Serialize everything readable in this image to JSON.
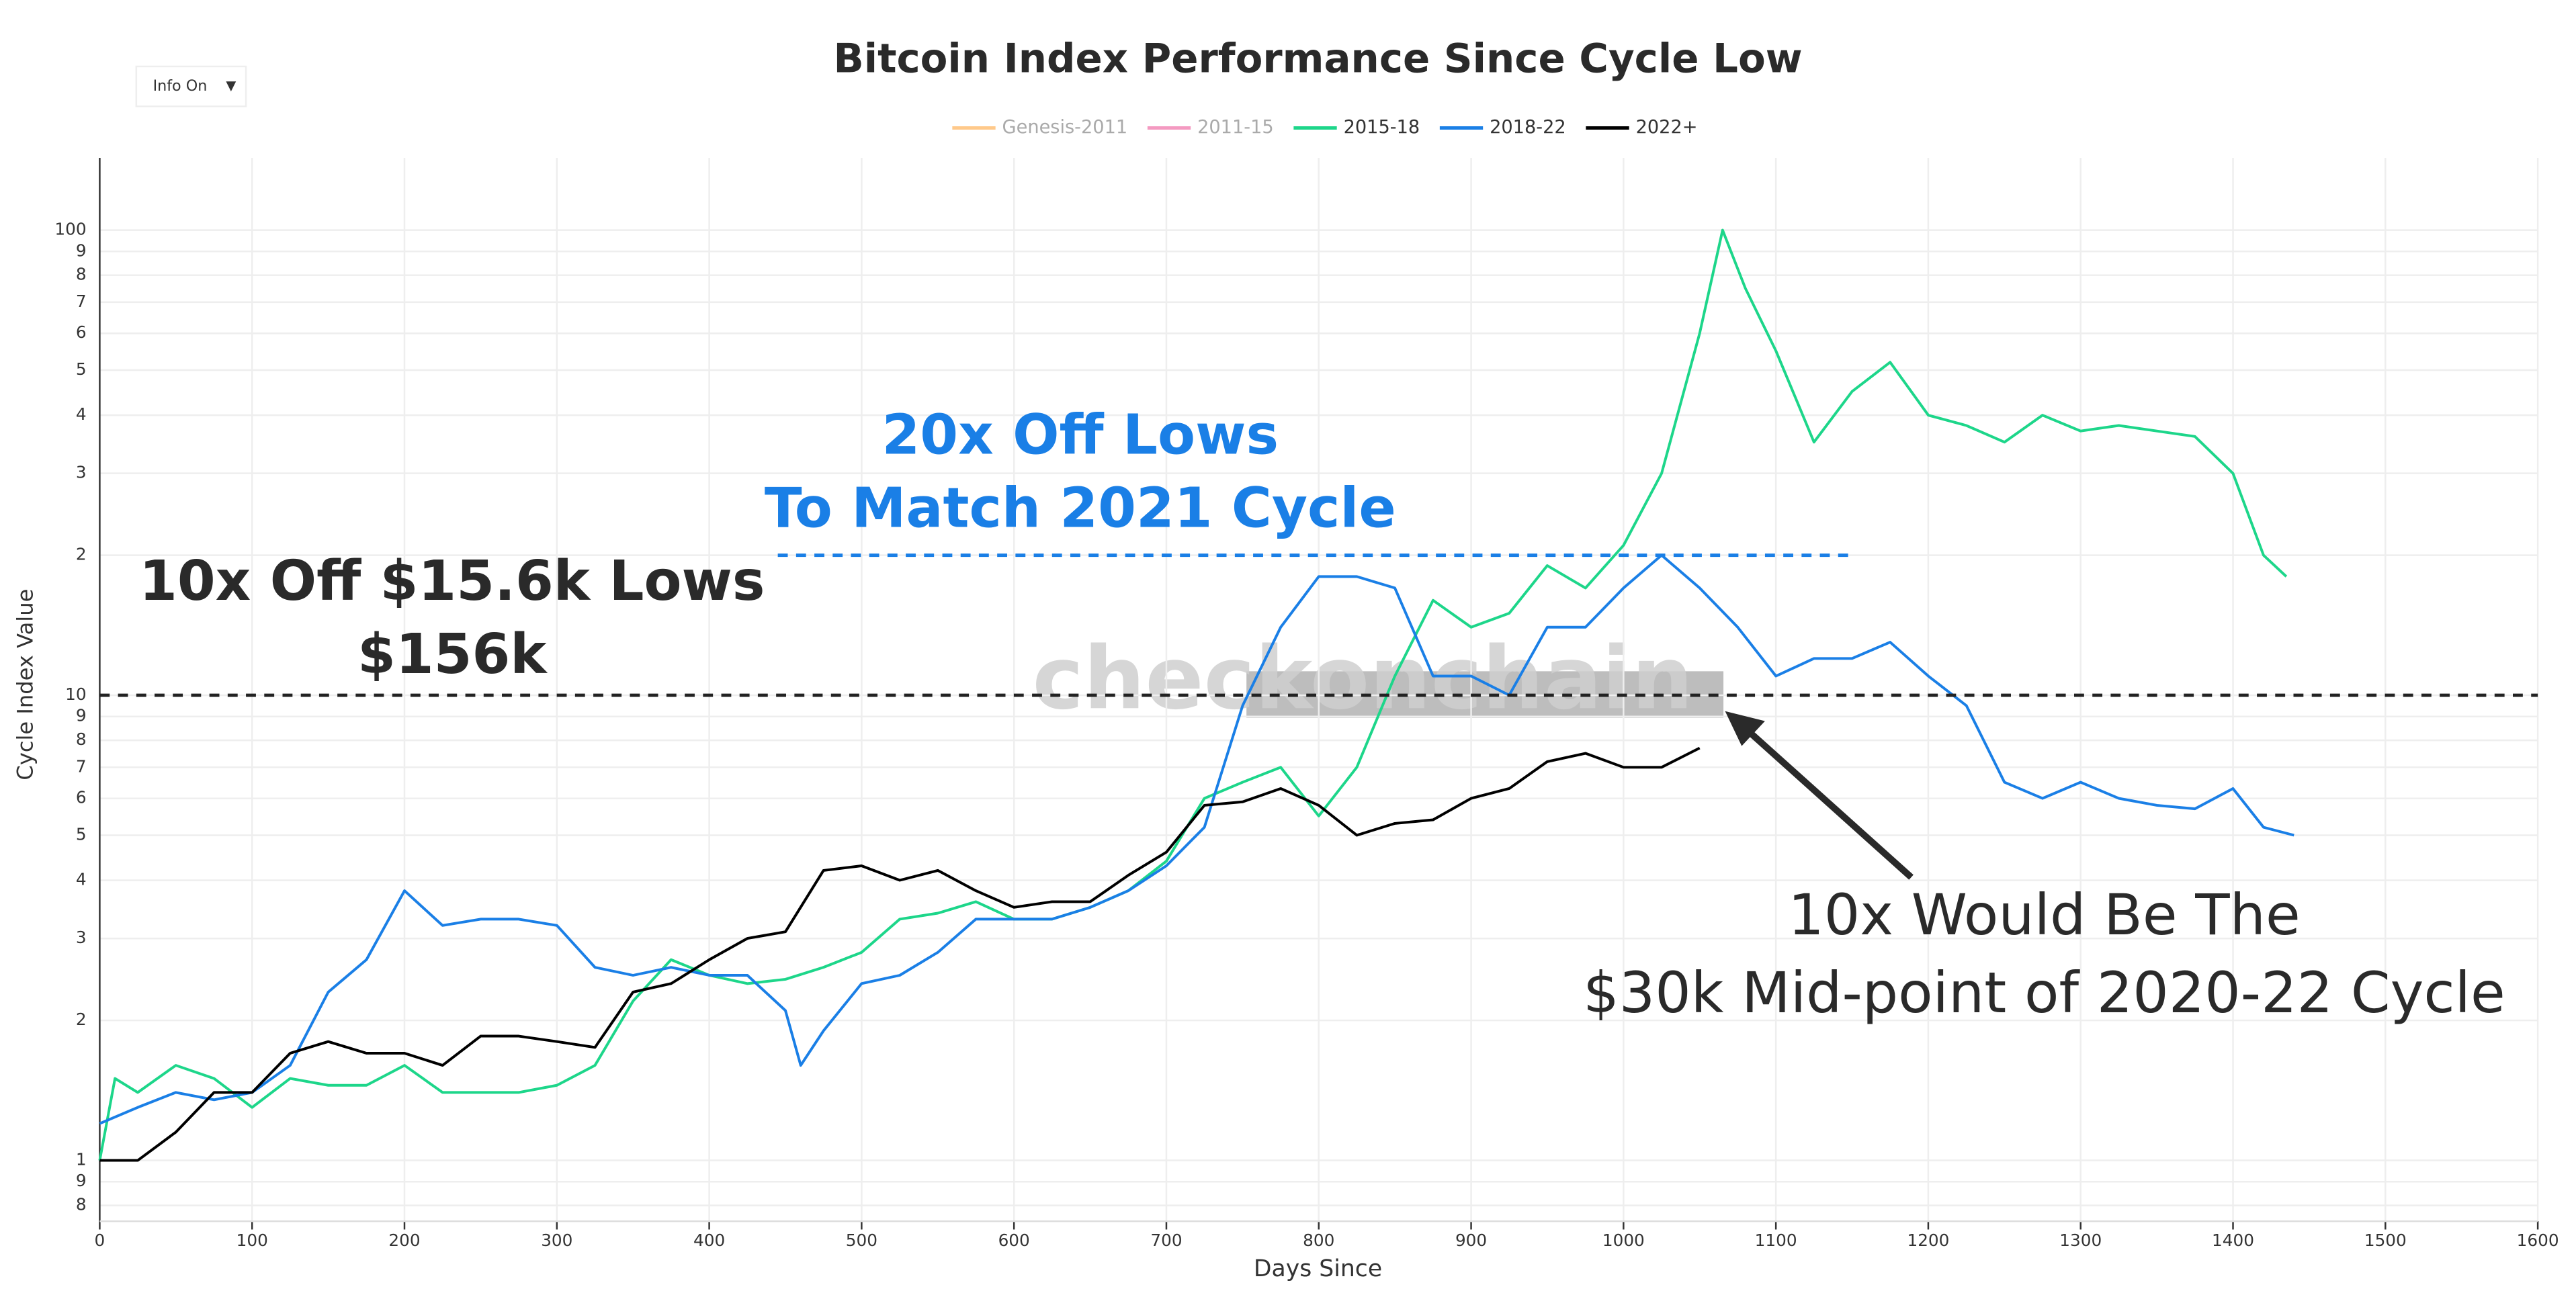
{
  "chart_data": {
    "type": "line",
    "title": "Bitcoin Index Performance Since Cycle Low",
    "dropdown": "Info On",
    "x_label": "Days Since",
    "y_label": "Cycle Index Value",
    "log_y": true,
    "grid": true,
    "watermark": "checkonchain",
    "xlim": [
      0,
      1600
    ],
    "xticks": [
      0,
      100,
      200,
      300,
      400,
      500,
      600,
      700,
      800,
      900,
      1000,
      1100,
      1200,
      1300,
      1400,
      1500,
      1600
    ],
    "ylim": [
      0.74,
      143
    ],
    "yticks": [
      {
        "value": 0.8,
        "label": "8"
      },
      {
        "value": 0.9,
        "label": "9"
      },
      1,
      {
        "value": 2,
        "label": "2"
      },
      {
        "value": 3,
        "label": "3"
      },
      {
        "value": 4,
        "label": "4"
      },
      {
        "value": 5,
        "label": "5"
      },
      {
        "value": 6,
        "label": "6"
      },
      {
        "value": 7,
        "label": "7"
      },
      {
        "value": 8,
        "label": "8"
      },
      {
        "value": 9,
        "label": "9"
      },
      10,
      {
        "value": 20,
        "label": "2"
      },
      {
        "value": 30,
        "label": "3"
      },
      {
        "value": 40,
        "label": "4"
      },
      {
        "value": 50,
        "label": "5"
      },
      {
        "value": 60,
        "label": "6"
      },
      {
        "value": 70,
        "label": "7"
      },
      {
        "value": 80,
        "label": "8"
      },
      {
        "value": 90,
        "label": "9"
      },
      100
    ],
    "series": [
      {
        "name": "Genesis-2011",
        "color": "#ffc98a",
        "visible": false,
        "x": [],
        "values": []
      },
      {
        "name": "2011-15",
        "color": "#f49ac1",
        "visible": false,
        "x": [],
        "values": []
      },
      {
        "name": "2015-18",
        "color": "#1dd68a",
        "visible": true,
        "x": [
          0,
          10,
          25,
          50,
          75,
          100,
          125,
          150,
          175,
          200,
          225,
          250,
          275,
          300,
          325,
          350,
          375,
          400,
          425,
          450,
          475,
          500,
          525,
          550,
          575,
          600,
          625,
          650,
          675,
          700,
          725,
          750,
          775,
          800,
          825,
          850,
          875,
          900,
          925,
          950,
          975,
          1000,
          1025,
          1050,
          1065,
          1080,
          1100,
          1125,
          1150,
          1175,
          1200,
          1225,
          1250,
          1275,
          1300,
          1325,
          1350,
          1375,
          1400,
          1420,
          1435
        ],
        "values": [
          1.0,
          1.5,
          1.4,
          1.6,
          1.5,
          1.3,
          1.5,
          1.45,
          1.45,
          1.6,
          1.4,
          1.4,
          1.4,
          1.45,
          1.6,
          2.2,
          2.7,
          2.5,
          2.4,
          2.45,
          2.6,
          2.8,
          3.3,
          3.4,
          3.6,
          3.3,
          3.3,
          3.5,
          3.8,
          4.4,
          6.0,
          6.5,
          7.0,
          5.5,
          7.0,
          11,
          16,
          14,
          15,
          19,
          17,
          21,
          30,
          60,
          100,
          75,
          55,
          35,
          45,
          52,
          40,
          38,
          35,
          40,
          37,
          38,
          37,
          36,
          30,
          20,
          18
        ]
      },
      {
        "name": "2018-22",
        "color": "#1a7fe6",
        "visible": true,
        "x": [
          0,
          25,
          50,
          75,
          100,
          125,
          150,
          175,
          200,
          225,
          250,
          275,
          300,
          325,
          350,
          375,
          400,
          425,
          450,
          460,
          475,
          500,
          525,
          550,
          575,
          600,
          625,
          650,
          675,
          700,
          725,
          750,
          775,
          800,
          825,
          850,
          875,
          900,
          925,
          950,
          975,
          1000,
          1025,
          1050,
          1075,
          1100,
          1125,
          1150,
          1175,
          1200,
          1225,
          1250,
          1275,
          1300,
          1325,
          1350,
          1375,
          1400,
          1420,
          1440
        ],
        "values": [
          1.2,
          1.3,
          1.4,
          1.35,
          1.4,
          1.6,
          2.3,
          2.7,
          3.8,
          3.2,
          3.3,
          3.3,
          3.2,
          2.6,
          2.5,
          2.6,
          2.5,
          2.5,
          2.1,
          1.6,
          1.9,
          2.4,
          2.5,
          2.8,
          3.3,
          3.3,
          3.3,
          3.5,
          3.8,
          4.3,
          5.2,
          9.5,
          14,
          18,
          18,
          17,
          11,
          11,
          10,
          14,
          14,
          17,
          20,
          17,
          14,
          11,
          12,
          12,
          13,
          11,
          9.5,
          6.5,
          6.0,
          6.5,
          6.0,
          5.8,
          5.7,
          6.3,
          5.2,
          5.0
        ]
      },
      {
        "name": "2022+",
        "color": "#000000",
        "visible": true,
        "x": [
          0,
          25,
          50,
          75,
          100,
          125,
          150,
          175,
          200,
          225,
          250,
          275,
          300,
          325,
          350,
          375,
          400,
          425,
          450,
          475,
          500,
          525,
          550,
          575,
          600,
          625,
          650,
          675,
          700,
          725,
          750,
          775,
          800,
          825,
          850,
          875,
          900,
          925,
          950,
          975,
          1000,
          1025,
          1050
        ],
        "values": [
          1.0,
          1.0,
          1.15,
          1.4,
          1.4,
          1.7,
          1.8,
          1.7,
          1.7,
          1.6,
          1.85,
          1.85,
          1.8,
          1.75,
          2.3,
          2.4,
          2.7,
          3.0,
          3.1,
          4.2,
          4.3,
          4.0,
          4.2,
          3.8,
          3.5,
          3.6,
          3.6,
          4.1,
          4.6,
          5.8,
          5.9,
          6.3,
          5.8,
          5.0,
          5.3,
          5.4,
          6.0,
          6.3,
          7.2,
          7.5,
          7.0,
          7.0,
          7.7
        ]
      }
    ],
    "reference_lines": [
      {
        "value": 10,
        "color": "#222222",
        "xlim": [
          0,
          1600
        ]
      },
      {
        "value": 20,
        "color": "#1a7fe6",
        "xlim": [
          445,
          1150
        ]
      }
    ],
    "annotations": [
      {
        "lines": [
          "20x Off Lows",
          "To Match 2021 Cycle"
        ],
        "color": "#1a7fe6"
      },
      {
        "lines": [
          "10x Off $15.6k Lows",
          "$156k"
        ],
        "color": "#2a2a2a"
      },
      {
        "lines": [
          "10x Would Be The",
          "$30k Mid-point of 2020-22 Cycle"
        ],
        "color": "#2a2a2a"
      }
    ]
  }
}
